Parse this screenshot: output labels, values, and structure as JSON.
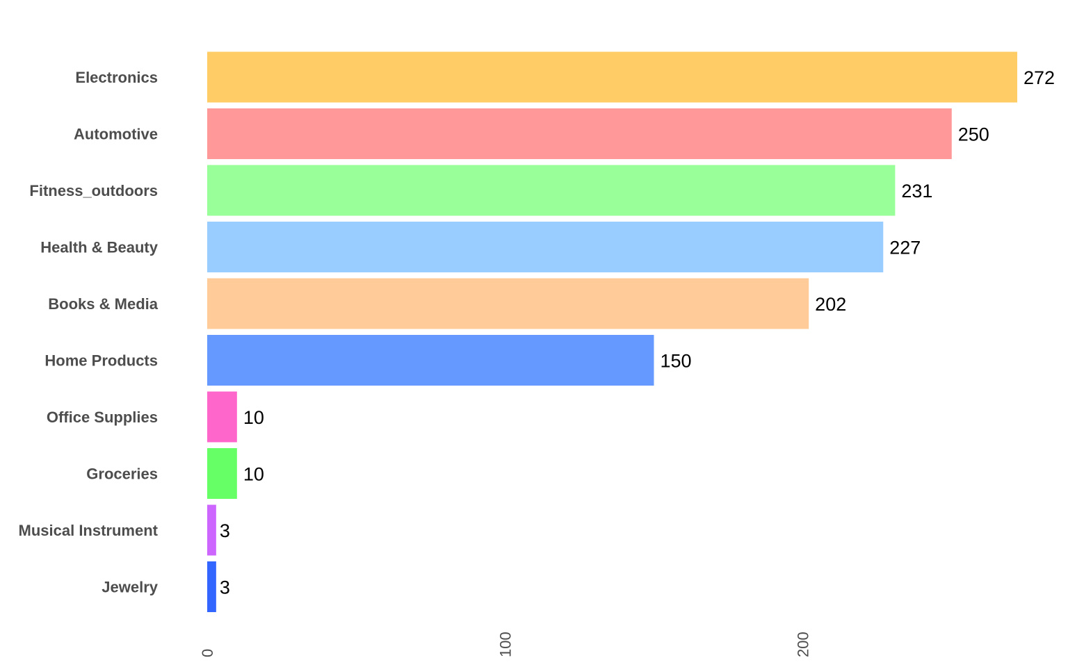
{
  "chart_data": {
    "type": "bar",
    "orientation": "horizontal",
    "categories": [
      "Electronics",
      "Automotive",
      "Fitness_outdoors",
      "Health & Beauty",
      "Books & Media",
      "Home Products",
      "Office Supplies",
      "Groceries",
      "Musical Instrument",
      "Jewelry"
    ],
    "values": [
      272,
      250,
      231,
      227,
      202,
      150,
      10,
      10,
      3,
      3
    ],
    "colors": [
      "#ffcc66",
      "#ff9999",
      "#99ff99",
      "#99ccff",
      "#ffcc99",
      "#6699ff",
      "#ff66cc",
      "#66ff66",
      "#cc66ff",
      "#3366ff"
    ],
    "xticks": [
      "0",
      "100",
      "200"
    ],
    "xtick_values": [
      0,
      100,
      200
    ],
    "xlim": [
      0,
      272
    ],
    "grid": false,
    "legend": "none",
    "title": "",
    "xlabel": "",
    "ylabel": ""
  }
}
